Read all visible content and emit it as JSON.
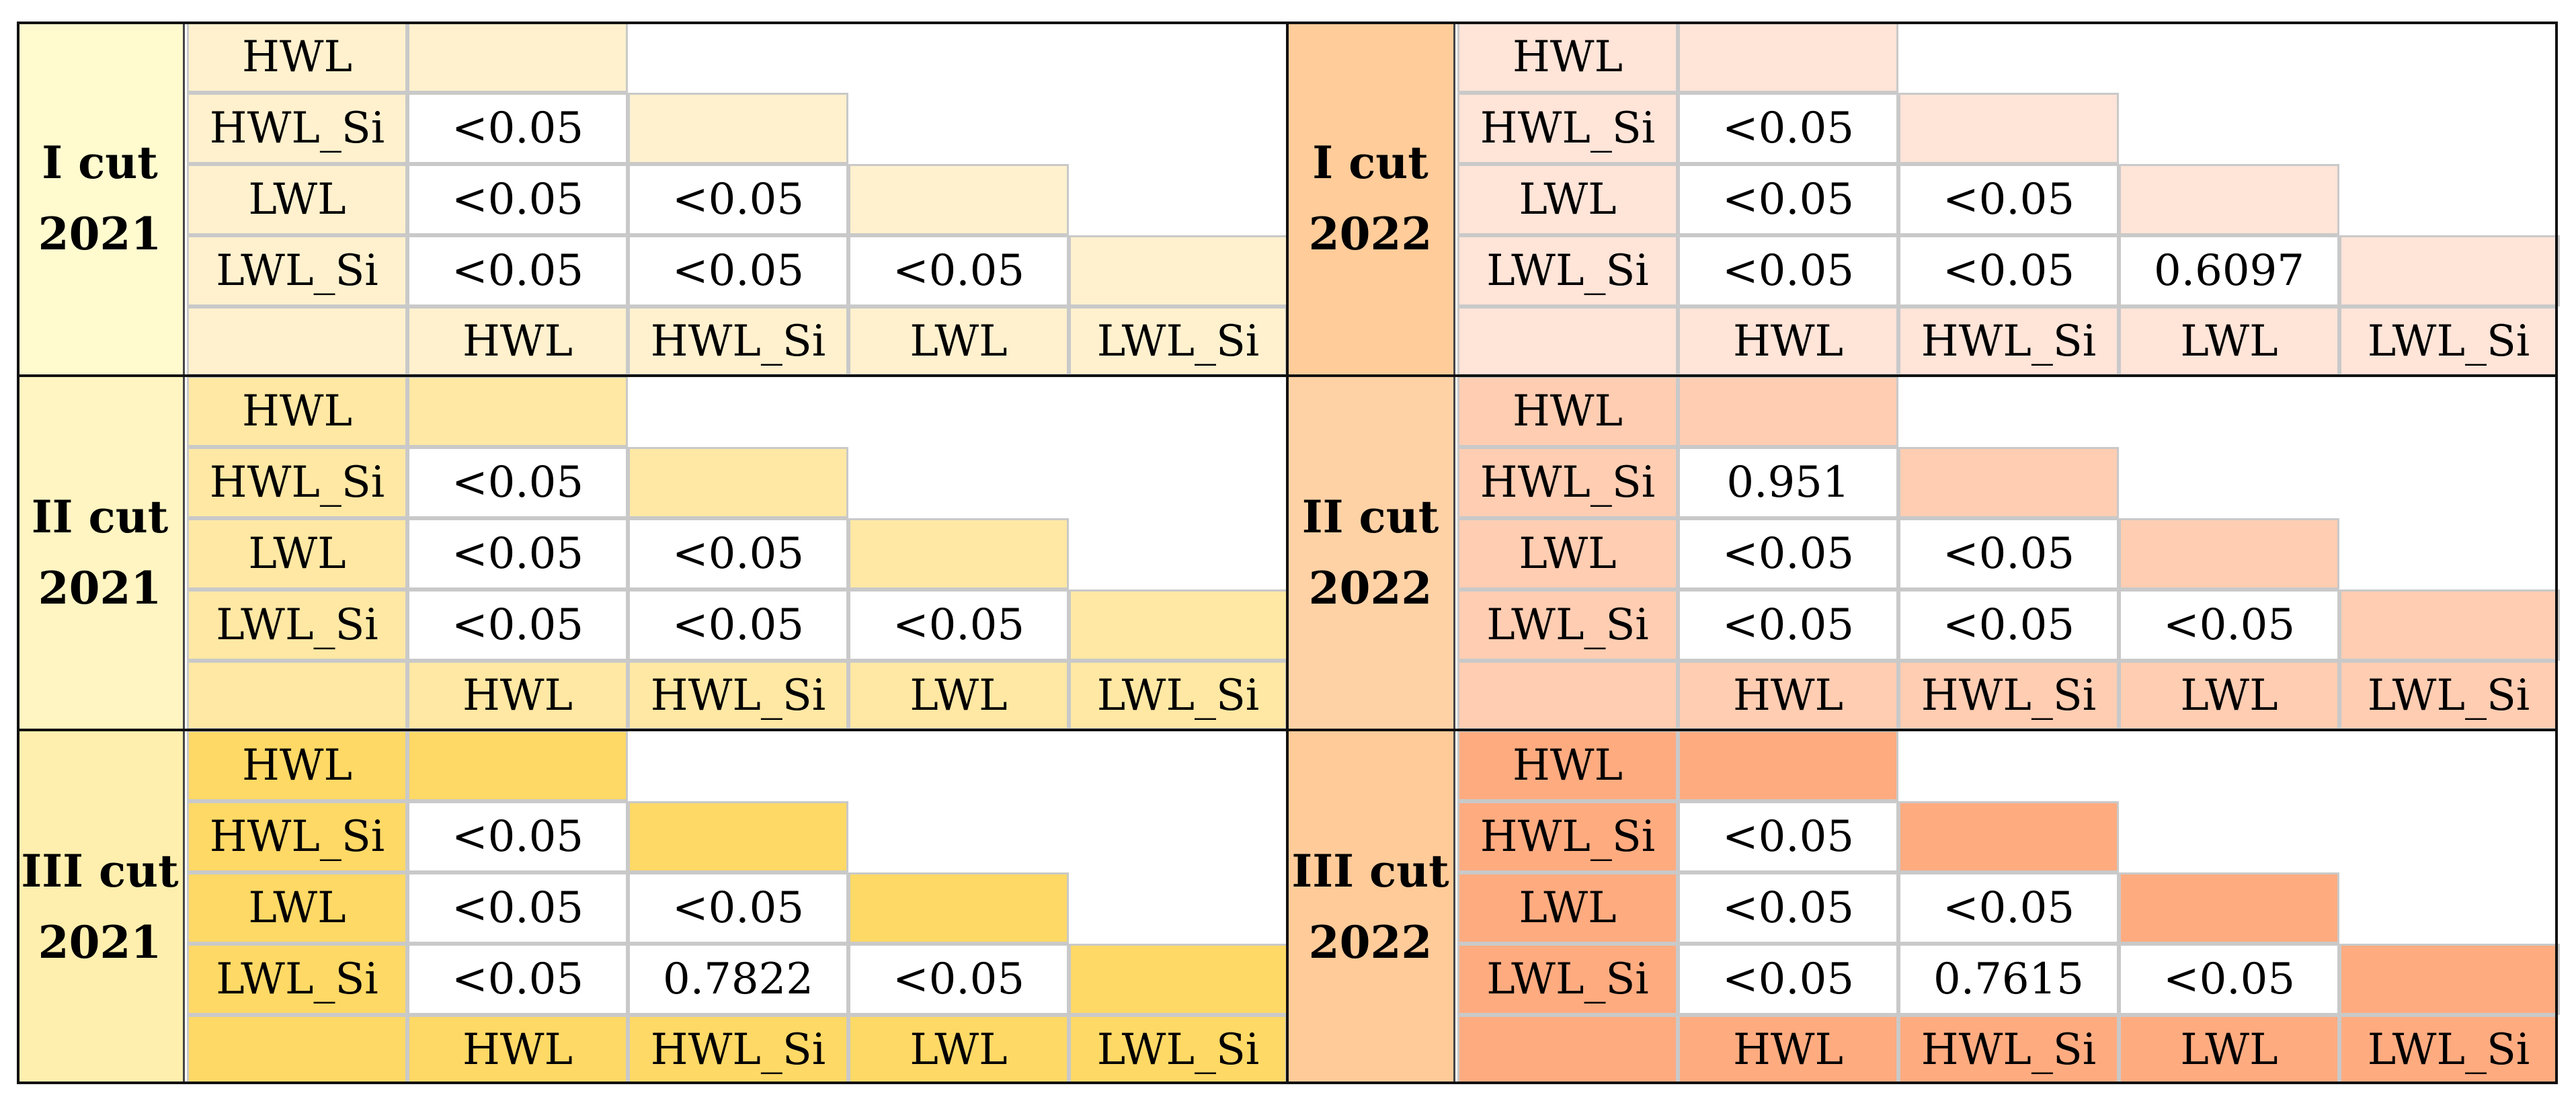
{
  "panels": [
    {
      "line1": "I cut",
      "line2": "2021",
      "head_color": "#fffbcf",
      "fill": "#fff1ce",
      "labels": [
        "HWL",
        "HWL_Si",
        "LWL",
        "LWL_Si"
      ],
      "rows": [
        [],
        [
          "<0.05"
        ],
        [
          "<0.05",
          "<0.05"
        ],
        [
          "<0.05",
          "<0.05",
          "<0.05"
        ]
      ]
    },
    {
      "line1": "I cut",
      "line2": "2022",
      "head_color": "#ffcc9a",
      "fill": "#ffe4d8",
      "labels": [
        "HWL",
        "HWL_Si",
        "LWL",
        "LWL_Si"
      ],
      "rows": [
        [],
        [
          "<0.05"
        ],
        [
          "<0.05",
          "<0.05"
        ],
        [
          "<0.05",
          "<0.05",
          "0.6097"
        ]
      ]
    },
    {
      "line1": "II cut",
      "line2": "2021",
      "head_color": "#fff5c2",
      "fill": "#ffe8a4",
      "labels": [
        "HWL",
        "HWL_Si",
        "LWL",
        "LWL_Si"
      ],
      "rows": [
        [],
        [
          "<0.05"
        ],
        [
          "<0.05",
          "<0.05"
        ],
        [
          "<0.05",
          "<0.05",
          "<0.05"
        ]
      ]
    },
    {
      "line1": "II cut",
      "line2": "2022",
      "head_color": "#ffd2a6",
      "fill": "#ffcdb2",
      "labels": [
        "HWL",
        "HWL_Si",
        "LWL",
        "LWL_Si"
      ],
      "rows": [
        [],
        [
          "0.951"
        ],
        [
          "<0.05",
          "<0.05"
        ],
        [
          "<0.05",
          "<0.05",
          "<0.05"
        ]
      ]
    },
    {
      "line1": "III cut",
      "line2": "2021",
      "head_color": "#ffefae",
      "fill": "#ffd966",
      "labels": [
        "HWL",
        "HWL_Si",
        "LWL",
        "LWL_Si"
      ],
      "rows": [
        [],
        [
          "<0.05"
        ],
        [
          "<0.05",
          "<0.05"
        ],
        [
          "<0.05",
          "0.7822",
          "<0.05"
        ]
      ]
    },
    {
      "line1": "III cut",
      "line2": "2022",
      "head_color": "#ffcb99",
      "fill": "#ffab80",
      "labels": [
        "HWL",
        "HWL_Si",
        "LWL",
        "LWL_Si"
      ],
      "rows": [
        [],
        [
          "<0.05"
        ],
        [
          "<0.05",
          "<0.05"
        ],
        [
          "<0.05",
          "0.7615",
          "<0.05"
        ]
      ]
    }
  ]
}
